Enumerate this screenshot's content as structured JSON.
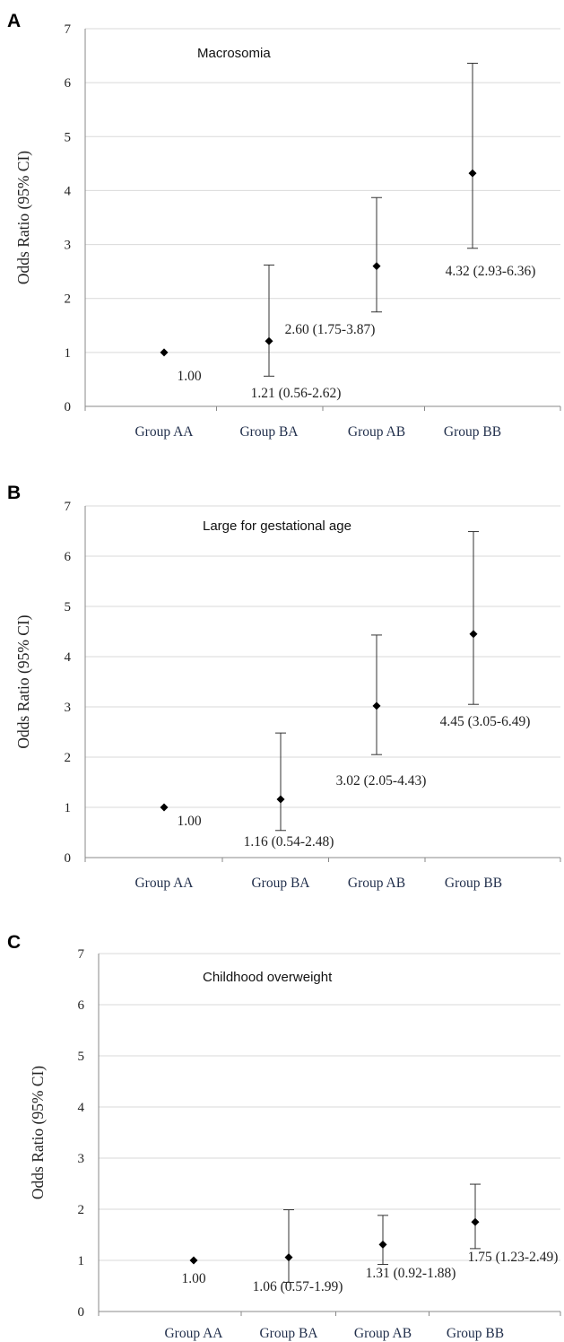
{
  "chart_data": [
    {
      "panel": "A",
      "type": "scatter",
      "title": "Macrosomia",
      "ylabel": "Odds Ratio (95% CI)",
      "ylim": [
        0,
        7
      ],
      "yticks": [
        "0",
        "1",
        "2",
        "3",
        "4",
        "5",
        "6",
        "7"
      ],
      "categories": [
        "Group AA",
        "Group BA",
        "Group AB",
        "Group BB"
      ],
      "values": [
        1.0,
        1.21,
        2.6,
        4.32
      ],
      "ci_low": [
        null,
        0.56,
        1.75,
        2.93
      ],
      "ci_high": [
        null,
        2.62,
        3.87,
        6.36
      ],
      "labels": [
        "1.00",
        "1.21 (0.56-2.62)",
        "2.60 (1.75-3.87)",
        "4.32 (2.93-6.36)"
      ],
      "grid": true
    },
    {
      "panel": "B",
      "type": "scatter",
      "title": "Large for gestational age",
      "ylabel": "Odds Ratio (95% CI)",
      "ylim": [
        0,
        7
      ],
      "yticks": [
        "0",
        "1",
        "2",
        "3",
        "4",
        "5",
        "6",
        "7"
      ],
      "categories": [
        "Group AA",
        "Group BA",
        "Group AB",
        "Group BB"
      ],
      "values": [
        1.0,
        1.16,
        3.02,
        4.45
      ],
      "ci_low": [
        null,
        0.54,
        2.05,
        3.05
      ],
      "ci_high": [
        null,
        2.48,
        4.43,
        6.49
      ],
      "labels": [
        "1.00",
        "1.16 (0.54-2.48)",
        "3.02 (2.05-4.43)",
        "4.45 (3.05-6.49)"
      ],
      "grid": true
    },
    {
      "panel": "C",
      "type": "scatter",
      "title": "Childhood overweight",
      "ylabel": "Odds Ratio (95% CI)",
      "ylim": [
        0,
        7
      ],
      "yticks": [
        "0",
        "1",
        "2",
        "3",
        "4",
        "5",
        "6",
        "7"
      ],
      "categories": [
        "Group AA",
        "Group BA",
        "Group AB",
        "Group BB"
      ],
      "values": [
        1.0,
        1.06,
        1.31,
        1.75
      ],
      "ci_low": [
        null,
        0.57,
        0.92,
        1.23
      ],
      "ci_high": [
        null,
        1.99,
        1.88,
        2.49
      ],
      "labels": [
        "1.00",
        "1.06 (0.57-1.99)",
        "1.31 (0.92-1.88)",
        "1.75 (1.23-2.49)"
      ],
      "grid": true
    }
  ]
}
